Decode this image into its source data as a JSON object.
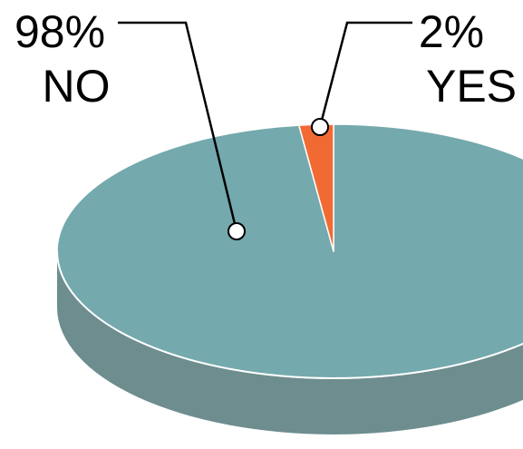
{
  "chart_data": {
    "type": "pie",
    "style": "3d",
    "slices": [
      {
        "label": "NO",
        "value": 98,
        "value_label": "98%",
        "color": "#74A9AD",
        "side_color": "#6E8D8F"
      },
      {
        "label": "YES",
        "value": 2,
        "value_label": "2%",
        "color": "#F26A33",
        "side_color": "#C65628"
      }
    ],
    "title": "",
    "legend": "none",
    "labels": "outside-with-leader-lines"
  }
}
